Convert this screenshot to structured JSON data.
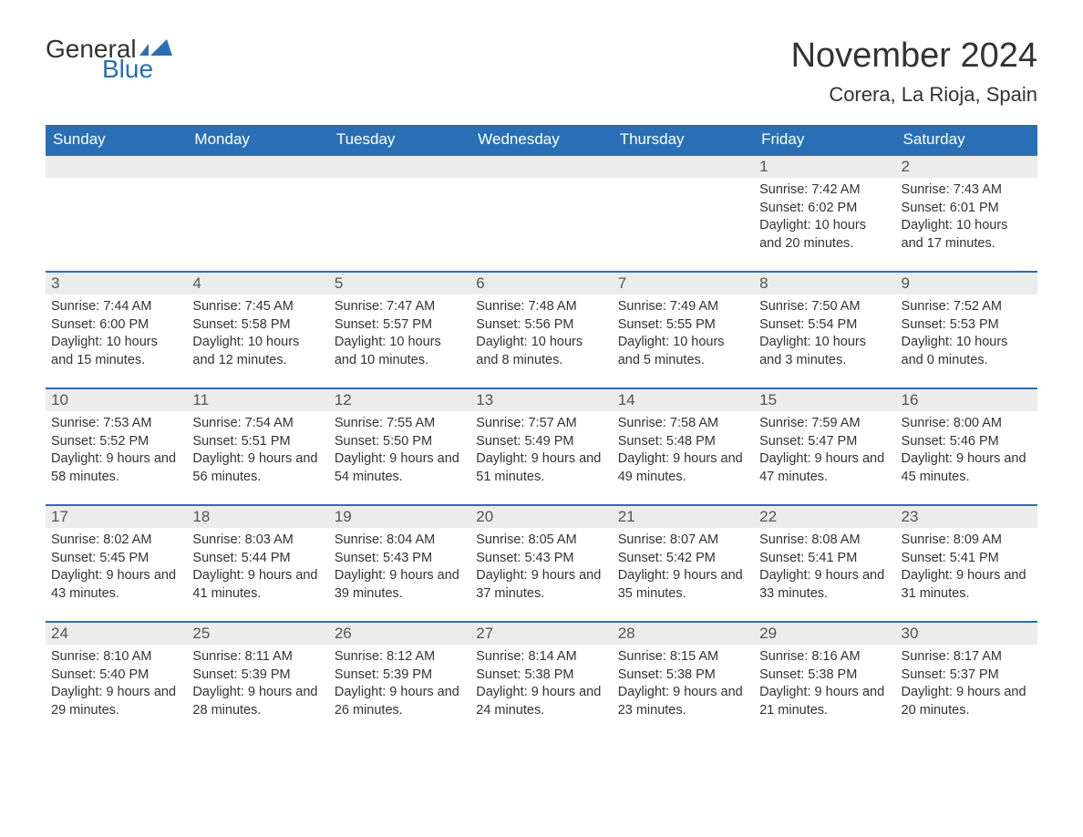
{
  "logo": {
    "text_general": "General",
    "text_blue": "Blue",
    "icon_color": "#2a6fb5"
  },
  "title": "November 2024",
  "location": "Corera, La Rioja, Spain",
  "colors": {
    "header_bg": "#2a6fb5",
    "header_text": "#ffffff",
    "daynum_bg": "#ececec",
    "daynum_text": "#555555",
    "body_text": "#333333",
    "row_border": "#2a6fb5"
  },
  "weekdays": [
    "Sunday",
    "Monday",
    "Tuesday",
    "Wednesday",
    "Thursday",
    "Friday",
    "Saturday"
  ],
  "weeks": [
    [
      {
        "day": "",
        "sunrise": "",
        "sunset": "",
        "daylight": ""
      },
      {
        "day": "",
        "sunrise": "",
        "sunset": "",
        "daylight": ""
      },
      {
        "day": "",
        "sunrise": "",
        "sunset": "",
        "daylight": ""
      },
      {
        "day": "",
        "sunrise": "",
        "sunset": "",
        "daylight": ""
      },
      {
        "day": "",
        "sunrise": "",
        "sunset": "",
        "daylight": ""
      },
      {
        "day": "1",
        "sunrise": "Sunrise: 7:42 AM",
        "sunset": "Sunset: 6:02 PM",
        "daylight": "Daylight: 10 hours and 20 minutes."
      },
      {
        "day": "2",
        "sunrise": "Sunrise: 7:43 AM",
        "sunset": "Sunset: 6:01 PM",
        "daylight": "Daylight: 10 hours and 17 minutes."
      }
    ],
    [
      {
        "day": "3",
        "sunrise": "Sunrise: 7:44 AM",
        "sunset": "Sunset: 6:00 PM",
        "daylight": "Daylight: 10 hours and 15 minutes."
      },
      {
        "day": "4",
        "sunrise": "Sunrise: 7:45 AM",
        "sunset": "Sunset: 5:58 PM",
        "daylight": "Daylight: 10 hours and 12 minutes."
      },
      {
        "day": "5",
        "sunrise": "Sunrise: 7:47 AM",
        "sunset": "Sunset: 5:57 PM",
        "daylight": "Daylight: 10 hours and 10 minutes."
      },
      {
        "day": "6",
        "sunrise": "Sunrise: 7:48 AM",
        "sunset": "Sunset: 5:56 PM",
        "daylight": "Daylight: 10 hours and 8 minutes."
      },
      {
        "day": "7",
        "sunrise": "Sunrise: 7:49 AM",
        "sunset": "Sunset: 5:55 PM",
        "daylight": "Daylight: 10 hours and 5 minutes."
      },
      {
        "day": "8",
        "sunrise": "Sunrise: 7:50 AM",
        "sunset": "Sunset: 5:54 PM",
        "daylight": "Daylight: 10 hours and 3 minutes."
      },
      {
        "day": "9",
        "sunrise": "Sunrise: 7:52 AM",
        "sunset": "Sunset: 5:53 PM",
        "daylight": "Daylight: 10 hours and 0 minutes."
      }
    ],
    [
      {
        "day": "10",
        "sunrise": "Sunrise: 7:53 AM",
        "sunset": "Sunset: 5:52 PM",
        "daylight": "Daylight: 9 hours and 58 minutes."
      },
      {
        "day": "11",
        "sunrise": "Sunrise: 7:54 AM",
        "sunset": "Sunset: 5:51 PM",
        "daylight": "Daylight: 9 hours and 56 minutes."
      },
      {
        "day": "12",
        "sunrise": "Sunrise: 7:55 AM",
        "sunset": "Sunset: 5:50 PM",
        "daylight": "Daylight: 9 hours and 54 minutes."
      },
      {
        "day": "13",
        "sunrise": "Sunrise: 7:57 AM",
        "sunset": "Sunset: 5:49 PM",
        "daylight": "Daylight: 9 hours and 51 minutes."
      },
      {
        "day": "14",
        "sunrise": "Sunrise: 7:58 AM",
        "sunset": "Sunset: 5:48 PM",
        "daylight": "Daylight: 9 hours and 49 minutes."
      },
      {
        "day": "15",
        "sunrise": "Sunrise: 7:59 AM",
        "sunset": "Sunset: 5:47 PM",
        "daylight": "Daylight: 9 hours and 47 minutes."
      },
      {
        "day": "16",
        "sunrise": "Sunrise: 8:00 AM",
        "sunset": "Sunset: 5:46 PM",
        "daylight": "Daylight: 9 hours and 45 minutes."
      }
    ],
    [
      {
        "day": "17",
        "sunrise": "Sunrise: 8:02 AM",
        "sunset": "Sunset: 5:45 PM",
        "daylight": "Daylight: 9 hours and 43 minutes."
      },
      {
        "day": "18",
        "sunrise": "Sunrise: 8:03 AM",
        "sunset": "Sunset: 5:44 PM",
        "daylight": "Daylight: 9 hours and 41 minutes."
      },
      {
        "day": "19",
        "sunrise": "Sunrise: 8:04 AM",
        "sunset": "Sunset: 5:43 PM",
        "daylight": "Daylight: 9 hours and 39 minutes."
      },
      {
        "day": "20",
        "sunrise": "Sunrise: 8:05 AM",
        "sunset": "Sunset: 5:43 PM",
        "daylight": "Daylight: 9 hours and 37 minutes."
      },
      {
        "day": "21",
        "sunrise": "Sunrise: 8:07 AM",
        "sunset": "Sunset: 5:42 PM",
        "daylight": "Daylight: 9 hours and 35 minutes."
      },
      {
        "day": "22",
        "sunrise": "Sunrise: 8:08 AM",
        "sunset": "Sunset: 5:41 PM",
        "daylight": "Daylight: 9 hours and 33 minutes."
      },
      {
        "day": "23",
        "sunrise": "Sunrise: 8:09 AM",
        "sunset": "Sunset: 5:41 PM",
        "daylight": "Daylight: 9 hours and 31 minutes."
      }
    ],
    [
      {
        "day": "24",
        "sunrise": "Sunrise: 8:10 AM",
        "sunset": "Sunset: 5:40 PM",
        "daylight": "Daylight: 9 hours and 29 minutes."
      },
      {
        "day": "25",
        "sunrise": "Sunrise: 8:11 AM",
        "sunset": "Sunset: 5:39 PM",
        "daylight": "Daylight: 9 hours and 28 minutes."
      },
      {
        "day": "26",
        "sunrise": "Sunrise: 8:12 AM",
        "sunset": "Sunset: 5:39 PM",
        "daylight": "Daylight: 9 hours and 26 minutes."
      },
      {
        "day": "27",
        "sunrise": "Sunrise: 8:14 AM",
        "sunset": "Sunset: 5:38 PM",
        "daylight": "Daylight: 9 hours and 24 minutes."
      },
      {
        "day": "28",
        "sunrise": "Sunrise: 8:15 AM",
        "sunset": "Sunset: 5:38 PM",
        "daylight": "Daylight: 9 hours and 23 minutes."
      },
      {
        "day": "29",
        "sunrise": "Sunrise: 8:16 AM",
        "sunset": "Sunset: 5:38 PM",
        "daylight": "Daylight: 9 hours and 21 minutes."
      },
      {
        "day": "30",
        "sunrise": "Sunrise: 8:17 AM",
        "sunset": "Sunset: 5:37 PM",
        "daylight": "Daylight: 9 hours and 20 minutes."
      }
    ]
  ]
}
